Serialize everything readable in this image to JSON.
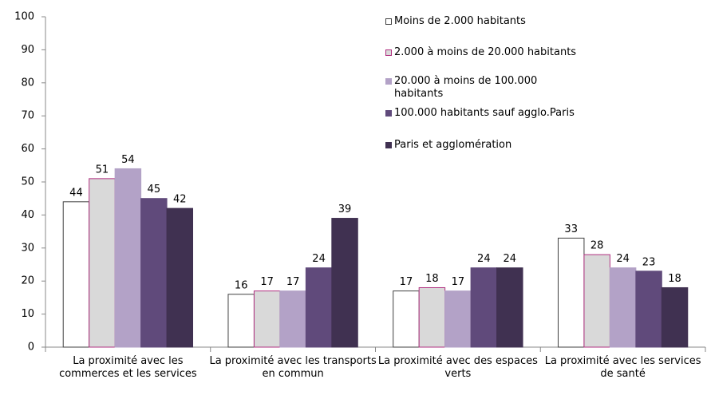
{
  "chart_data": {
    "type": "bar",
    "categories": [
      "La proximité avec les commerces et les services",
      "La proximité avec les transports en commun",
      "La proximité avec des espaces verts",
      "La proximité avec les services de santé"
    ],
    "series": [
      {
        "name": "Moins de 2.000 habitants",
        "color": "#ffffff",
        "stroke": "#404040",
        "values": [
          44,
          16,
          17,
          33
        ]
      },
      {
        "name": "2.000 à moins de 20.000 habitants",
        "color": "#d9d9d9",
        "stroke": "#b03080",
        "values": [
          51,
          17,
          18,
          28
        ]
      },
      {
        "name": "20.000 à moins de 100.000 habitants",
        "color": "#b3a2c7",
        "stroke": "#b3a2c7",
        "values": [
          54,
          17,
          17,
          24
        ]
      },
      {
        "name": "100.000 habitants  sauf agglo.Paris",
        "color": "#604a7b",
        "stroke": "#604a7b",
        "values": [
          45,
          24,
          24,
          23
        ]
      },
      {
        "name": "Paris et agglomération",
        "color": "#403151",
        "stroke": "#403151",
        "values": [
          42,
          39,
          24,
          18
        ]
      }
    ],
    "ylim": [
      0,
      100
    ],
    "yticks": [
      0,
      10,
      20,
      30,
      40,
      50,
      60,
      70,
      80,
      90,
      100
    ],
    "legend": "upper right"
  }
}
